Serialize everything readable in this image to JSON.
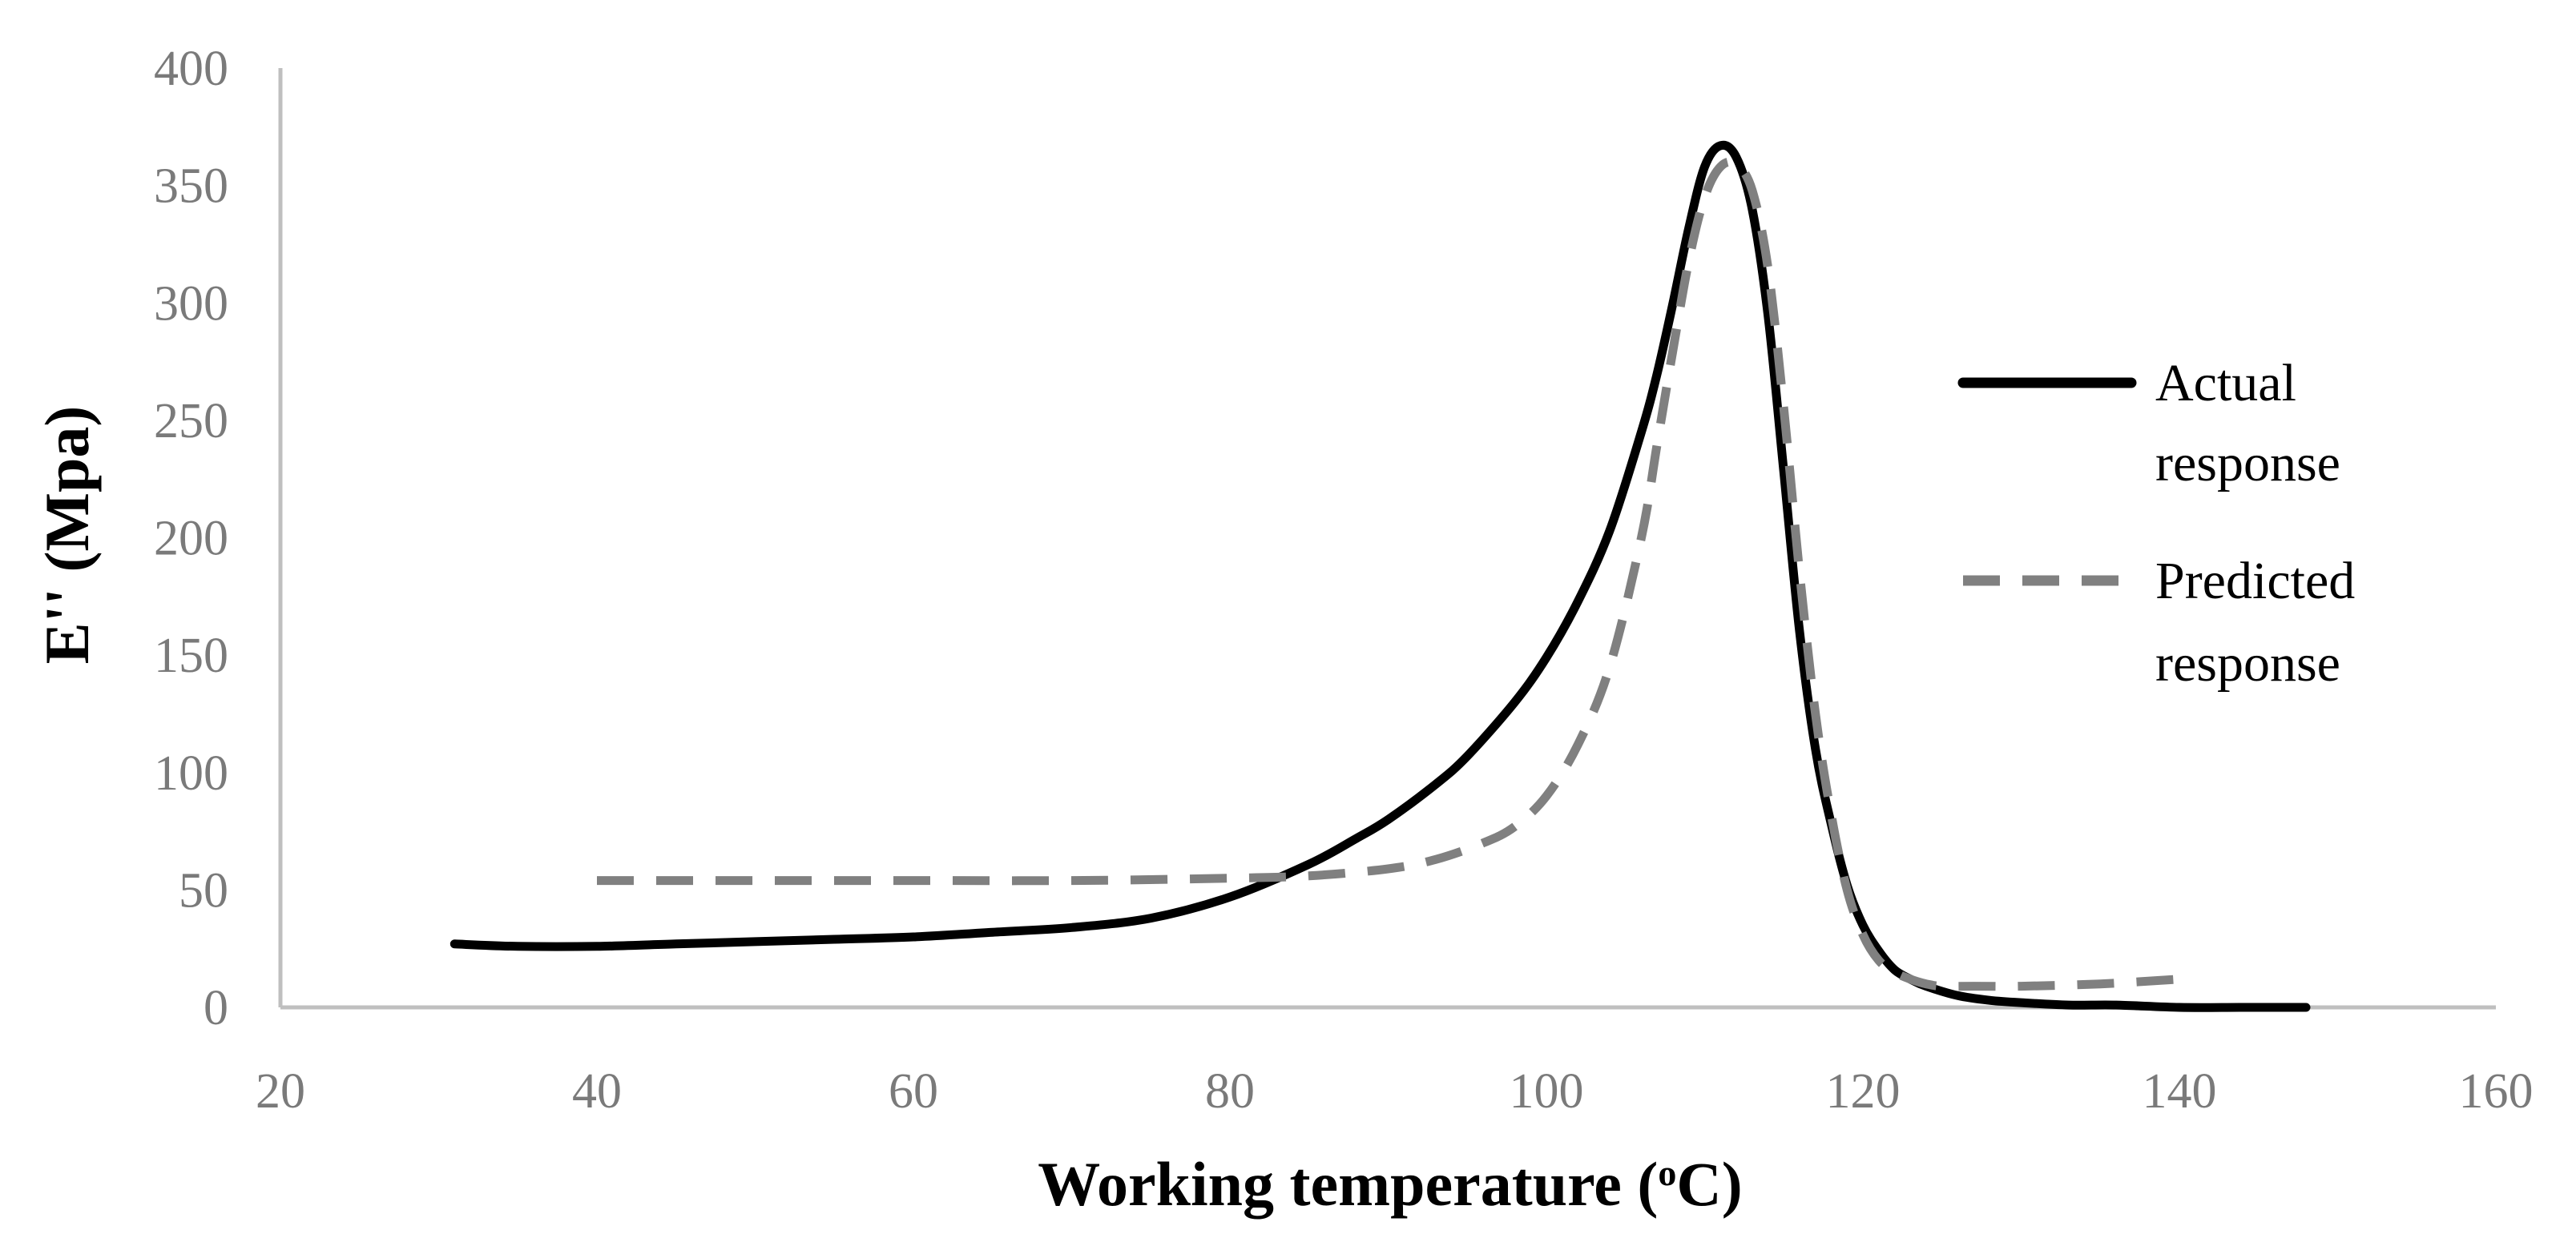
{
  "chart_data": {
    "type": "line",
    "title": "",
    "xlabel": "Working temperature (",
    "xlabel_sup": "o",
    "xlabel_end": "C)",
    "ylabel": "E'' (Mpa)",
    "xlim": [
      20,
      160
    ],
    "ylim": [
      0,
      400
    ],
    "xticks": [
      20,
      40,
      60,
      80,
      100,
      120,
      140,
      160
    ],
    "yticks": [
      0,
      50,
      100,
      150,
      200,
      250,
      300,
      350,
      400
    ],
    "grid": false,
    "legend_position": "right",
    "series": [
      {
        "name_line1": "Actual",
        "name_line2": "response",
        "color": "#000000",
        "dash": "solid",
        "x": [
          31,
          35,
          40,
          45,
          50,
          55,
          60,
          65,
          70,
          75,
          80,
          85,
          88,
          90,
          93,
          95,
          98,
          100,
          102,
          104,
          106,
          107,
          108,
          109,
          110,
          111,
          112,
          113,
          114,
          115,
          116,
          117,
          118,
          119,
          120,
          121,
          122,
          123,
          124,
          126,
          128,
          130,
          133,
          136,
          140,
          144,
          148
        ],
        "y": [
          27,
          26,
          26,
          27,
          28,
          29,
          30,
          32,
          34,
          38,
          47,
          61,
          72,
          80,
          95,
          107,
          130,
          149,
          173,
          203,
          245,
          270,
          300,
          332,
          358,
          367,
          362,
          340,
          295,
          228,
          160,
          110,
          78,
          52,
          35,
          24,
          16,
          12,
          9,
          5,
          3,
          2,
          1,
          1,
          0,
          0,
          0
        ]
      },
      {
        "name_line1": "Predicted",
        "name_line2": "response",
        "color": "#808080",
        "dash": "dashed",
        "x": [
          40,
          50,
          60,
          70,
          80,
          85,
          90,
          93,
          96,
          98,
          100,
          102,
          104,
          106,
          107,
          108,
          109,
          110,
          111,
          112,
          113,
          114,
          115,
          116,
          117,
          118,
          119,
          120,
          121,
          122,
          123,
          124,
          125,
          127,
          130,
          135,
          140
        ],
        "y": [
          54,
          54,
          54,
          54,
          55,
          56,
          59,
          63,
          70,
          77,
          90,
          112,
          145,
          200,
          240,
          280,
          318,
          345,
          358,
          359,
          348,
          315,
          255,
          185,
          125,
          82,
          50,
          31,
          20,
          15,
          12,
          10,
          9,
          9,
          9,
          10,
          12
        ]
      }
    ]
  }
}
